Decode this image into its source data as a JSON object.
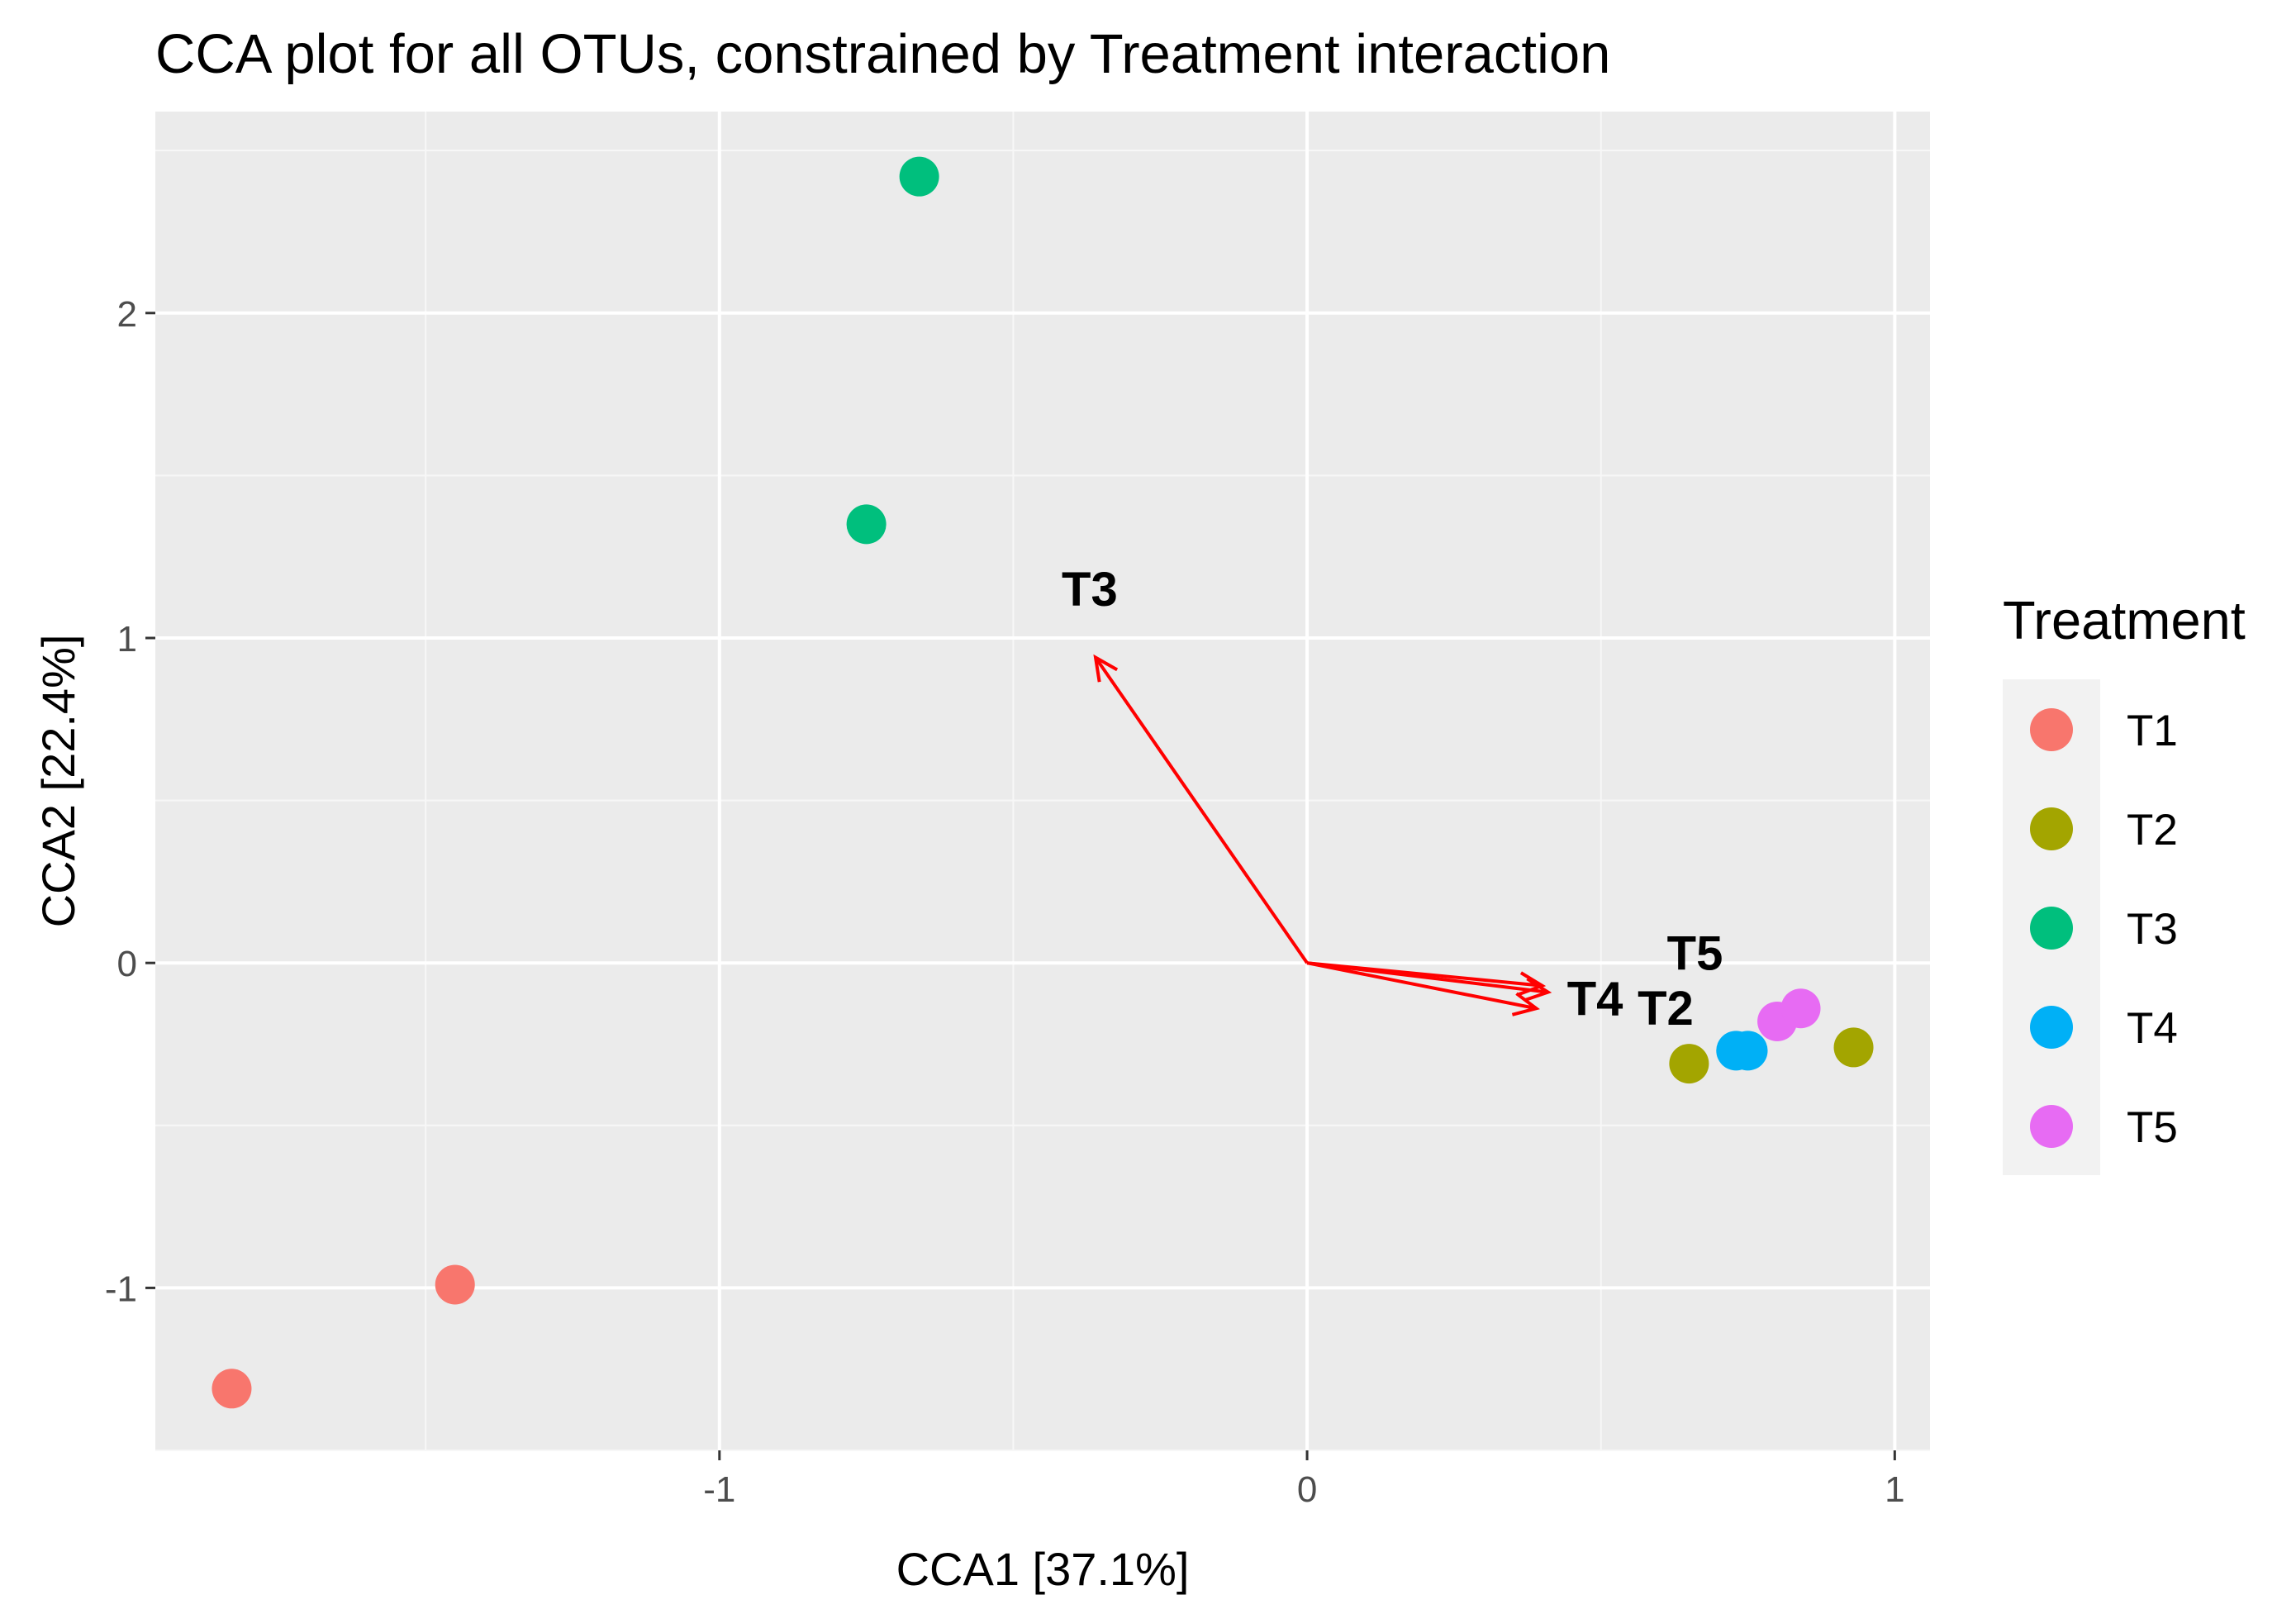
{
  "chart_data": {
    "type": "scatter",
    "title": "CCA plot for all OTUs, constrained by Treatment interaction",
    "xlabel": "CCA1   [37.1%]",
    "ylabel": "CCA2   [22.4%]",
    "xlim": [
      -1.96,
      1.06
    ],
    "ylim": [
      -1.5,
      2.62
    ],
    "x_ticks": [
      -1,
      0,
      1
    ],
    "y_ticks": [
      -1,
      0,
      1,
      2
    ],
    "grid": true,
    "legend_title": "Treatment",
    "legend_position": "right",
    "series": [
      {
        "name": "T1",
        "color": "#F8766D",
        "points": [
          [
            -1.83,
            -1.31
          ],
          [
            -1.45,
            -0.99
          ]
        ]
      },
      {
        "name": "T2",
        "color": "#A3A500",
        "points": [
          [
            0.65,
            -0.31
          ],
          [
            0.93,
            -0.26
          ]
        ]
      },
      {
        "name": "T3",
        "color": "#00BF7D",
        "points": [
          [
            -0.66,
            2.42
          ],
          [
            -0.75,
            1.35
          ]
        ]
      },
      {
        "name": "T4",
        "color": "#00B0F6",
        "points": [
          [
            0.73,
            -0.27
          ],
          [
            0.75,
            -0.27
          ]
        ]
      },
      {
        "name": "T5",
        "color": "#E76BF3",
        "points": [
          [
            0.8,
            -0.18
          ],
          [
            0.84,
            -0.14
          ]
        ]
      }
    ],
    "biplot_arrows": [
      {
        "label": "T3",
        "x": -0.36,
        "y": 0.94,
        "label_x": -0.37,
        "label_y": 1.15
      },
      {
        "label": "T4",
        "x": 0.41,
        "y": -0.09,
        "label_x": 0.49,
        "label_y": -0.11
      },
      {
        "label": "T2",
        "x": 0.39,
        "y": -0.14,
        "label_x": 0.61,
        "label_y": -0.14
      },
      {
        "label": "T5",
        "x": 0.4,
        "y": -0.07,
        "label_x": 0.66,
        "label_y": 0.03
      }
    ],
    "arrow_color": "#FF0000"
  }
}
